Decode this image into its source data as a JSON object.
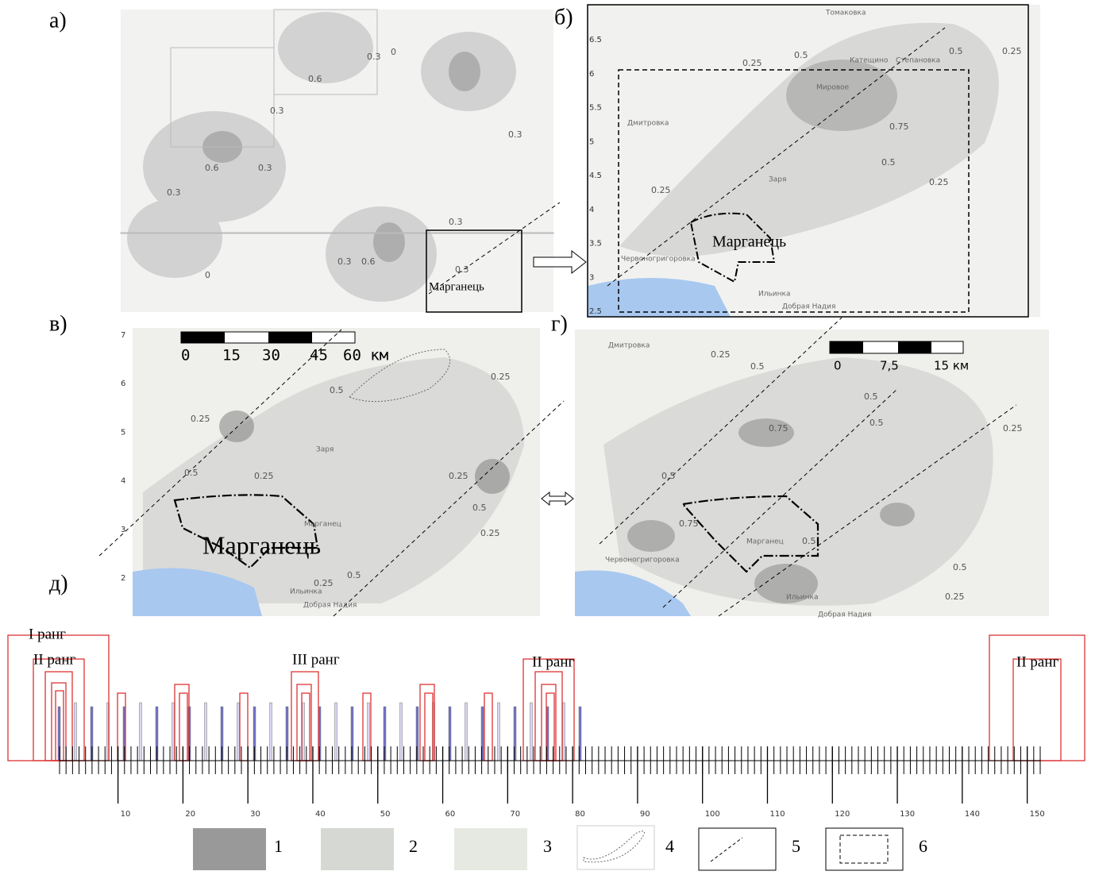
{
  "panel_labels": [
    "а)",
    "б)",
    "в)",
    "г)",
    "д)"
  ],
  "map_a": {
    "contours": [
      "0.3",
      "0",
      "0.6",
      "0.3",
      "0.3",
      "0.6",
      "0.3",
      "0.3",
      "0.3",
      "0.6",
      "0.3",
      "0",
      "0.3"
    ],
    "town": "Марганець"
  },
  "map_b": {
    "contours": [
      "0.25",
      "0.5",
      "0.5",
      "0.25",
      "0.75",
      "0.5",
      "0.25",
      "0.25"
    ],
    "places": [
      "Томаковка",
      "Катещино",
      "Мировое",
      "Степановка",
      "Дмитровка",
      "Заря",
      "Червоногригоровка",
      "Ильинка",
      "Добрая Надия"
    ],
    "town": "Марганець",
    "yticks": [
      6.5,
      6,
      5.5,
      5,
      4.5,
      4,
      3.5,
      3,
      2.5
    ]
  },
  "map_c": {
    "contours": [
      "0.25",
      "0.5",
      "0.25",
      "0.25",
      "0.5",
      "0.25",
      "0.25",
      "0.5",
      "0.25",
      "0.5"
    ],
    "places": [
      "Заря",
      "Марганец",
      "Ильинка",
      "Добрая Надия"
    ],
    "town": "Марганець",
    "yticks": [
      7,
      6,
      5,
      4,
      3,
      2
    ],
    "scale": [
      "0",
      "15",
      "30",
      "45",
      "60 км"
    ]
  },
  "map_d": {
    "contours": [
      "0.25",
      "0.5",
      "0.75",
      "0.5",
      "0.5",
      "0.25",
      "0.5",
      "0.75",
      "0.5",
      "0.5",
      "0.25"
    ],
    "places": [
      "Дмитровка",
      "Марганец",
      "Ильинка",
      "Червоногригоровка",
      "Добрая Надия"
    ],
    "scale": [
      "0",
      "7,5",
      "15 км"
    ]
  },
  "ranks": [
    "I ранг",
    "II ранг",
    "III ранг",
    "II ранг",
    "II ранг"
  ],
  "axis": {
    "xlim": [
      1,
      152
    ],
    "ticks": [
      10,
      20,
      30,
      40,
      50,
      60,
      70,
      80,
      90,
      100,
      110,
      120,
      130,
      140,
      150
    ]
  },
  "legend": [
    "1",
    "2",
    "3",
    "4",
    "5",
    "6"
  ]
}
